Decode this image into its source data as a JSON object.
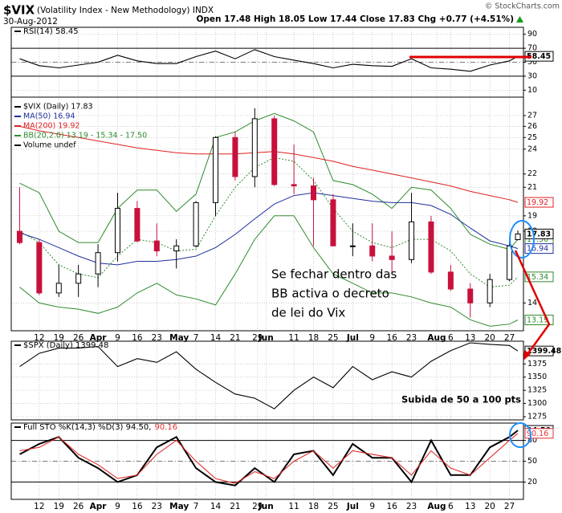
{
  "header": {
    "symbol": "$VIX",
    "name": "(Volatility Index - New Methodology) INDX",
    "date": "30-Aug-2012",
    "quote": "Open 17.48 High 18.05 Low 17.44 Close 17.83 Chg +0.77 (+4.51%)",
    "source": "© StockCharts.com"
  },
  "chart_data": [
    {
      "type": "line",
      "title": "RSI(14) 58.45",
      "x": [
        "2012-03-05",
        "2012-03-12",
        "2012-03-19",
        "2012-03-26",
        "2012-04-02",
        "2012-04-09",
        "2012-04-16",
        "2012-04-23",
        "2012-04-30",
        "2012-05-07",
        "2012-05-14",
        "2012-05-21",
        "2012-05-28",
        "2012-06-04",
        "2012-06-11",
        "2012-06-18",
        "2012-06-25",
        "2012-07-02",
        "2012-07-09",
        "2012-07-16",
        "2012-07-23",
        "2012-07-30",
        "2012-08-06",
        "2012-08-13",
        "2012-08-20",
        "2012-08-27",
        "2012-08-30"
      ],
      "xlim": [
        "2012-03-02",
        "2012-09-01"
      ],
      "ylim": [
        0,
        100
      ],
      "yticks": [
        10,
        30,
        50,
        70,
        90
      ],
      "ref_lines": [
        30,
        50,
        70
      ],
      "series": [
        {
          "color": "#000000",
          "values": [
            55,
            45,
            42,
            46,
            50,
            60,
            52,
            48,
            48,
            58,
            66,
            55,
            68,
            58,
            53,
            48,
            42,
            47,
            45,
            44,
            55,
            42,
            40,
            37,
            46,
            52,
            58.45
          ]
        }
      ]
    },
    {
      "type": "candlestick",
      "title": "$VIX (Daily) 17.83",
      "x": [
        "2012-03-05",
        "2012-03-12",
        "2012-03-19",
        "2012-03-26",
        "2012-04-02",
        "2012-04-09",
        "2012-04-16",
        "2012-04-23",
        "2012-04-30",
        "2012-05-07",
        "2012-05-14",
        "2012-05-21",
        "2012-05-28",
        "2012-06-04",
        "2012-06-11",
        "2012-06-18",
        "2012-06-25",
        "2012-07-02",
        "2012-07-09",
        "2012-07-16",
        "2012-07-23",
        "2012-07-30",
        "2012-08-06",
        "2012-08-13",
        "2012-08-20",
        "2012-08-27",
        "2012-08-30"
      ],
      "xlim": [
        "2012-03-02",
        "2012-09-01"
      ],
      "ylim": [
        12.7,
        28.8
      ],
      "log": true,
      "yticks": [
        14,
        18,
        19,
        21,
        22,
        24,
        25,
        26,
        27
      ],
      "xticks": [
        {
          "value": "2012-03-12",
          "label": "12"
        },
        {
          "value": "2012-03-19",
          "label": "19"
        },
        {
          "value": "2012-03-26",
          "label": "26"
        },
        {
          "value": "2012-04-02",
          "label": "Apr"
        },
        {
          "value": "2012-04-09",
          "label": "9"
        },
        {
          "value": "2012-04-16",
          "label": "16"
        },
        {
          "value": "2012-04-23",
          "label": "23"
        },
        {
          "value": "2012-05-01",
          "label": "May"
        },
        {
          "value": "2012-05-07",
          "label": "7"
        },
        {
          "value": "2012-05-14",
          "label": "14"
        },
        {
          "value": "2012-05-21",
          "label": "21"
        },
        {
          "value": "2012-05-29",
          "label": "29"
        },
        {
          "value": "2012-06-01",
          "label": "Jun"
        },
        {
          "value": "2012-06-11",
          "label": "11"
        },
        {
          "value": "2012-06-18",
          "label": "18"
        },
        {
          "value": "2012-06-25",
          "label": "25"
        },
        {
          "value": "2012-07-02",
          "label": "Jul"
        },
        {
          "value": "2012-07-09",
          "label": "9"
        },
        {
          "value": "2012-07-16",
          "label": "16"
        },
        {
          "value": "2012-07-23",
          "label": "23"
        },
        {
          "value": "2012-08-01",
          "label": "Aug"
        },
        {
          "value": "2012-08-06",
          "label": "6"
        },
        {
          "value": "2012-08-13",
          "label": "13"
        },
        {
          "value": "2012-08-20",
          "label": "20"
        },
        {
          "value": "2012-08-27",
          "label": "27"
        }
      ],
      "open": [
        18.0,
        17.3,
        14.5,
        15.0,
        15.5,
        16.7,
        19.5,
        17.4,
        16.8,
        17.1,
        19.9,
        25.0,
        21.8,
        26.7,
        21.2,
        21.1,
        20.1,
        17.1,
        17.1,
        16.5,
        16.3,
        18.6,
        15.6,
        14.7,
        14.0,
        15.2,
        17.48
      ],
      "high": [
        21.0,
        17.5,
        16.0,
        16.0,
        17.2,
        20.6,
        20.0,
        18.5,
        17.5,
        20.0,
        25.1,
        25.5,
        27.7,
        27.0,
        24.4,
        21.7,
        20.5,
        18.5,
        18.5,
        18.0,
        20.6,
        19.0,
        16.0,
        15.0,
        15.5,
        17.4,
        18.05
      ],
      "low": [
        17.2,
        14.4,
        14.3,
        14.3,
        14.8,
        16.2,
        17.3,
        16.5,
        15.8,
        17.0,
        19.0,
        21.5,
        21.0,
        21.1,
        20.5,
        17.1,
        17.1,
        16.5,
        16.2,
        15.5,
        16.1,
        15.5,
        14.6,
        13.3,
        13.8,
        15.1,
        17.44
      ],
      "close": [
        17.3,
        14.5,
        15.0,
        15.5,
        16.7,
        19.5,
        17.4,
        16.8,
        17.1,
        19.9,
        25.0,
        21.8,
        26.7,
        21.2,
        21.1,
        20.1,
        17.1,
        17.1,
        16.5,
        16.3,
        18.6,
        15.6,
        14.7,
        14.0,
        15.2,
        17.1,
        17.83
      ],
      "up_color": "#000000",
      "down_color": "#c8103c",
      "series": [
        {
          "name": "MA(50) 16.94",
          "color": "#1f2f9a",
          "values": [
            17.9,
            17.5,
            17.0,
            16.5,
            16.1,
            16.0,
            16.2,
            16.2,
            16.3,
            16.5,
            17.0,
            17.8,
            18.8,
            19.8,
            20.4,
            20.6,
            20.4,
            20.2,
            20.0,
            19.9,
            19.9,
            19.7,
            19.1,
            18.2,
            17.4,
            17.1,
            16.94
          ]
        },
        {
          "name": "MA(200) 19.92",
          "color": "#e02020",
          "values": [
            26.0,
            25.6,
            25.3,
            25.0,
            24.7,
            24.4,
            24.1,
            23.9,
            23.7,
            23.6,
            23.6,
            23.6,
            23.7,
            23.8,
            23.6,
            23.3,
            23.0,
            22.6,
            22.3,
            22.0,
            21.7,
            21.4,
            21.1,
            20.7,
            20.4,
            20.1,
            19.92
          ]
        }
      ],
      "bands": {
        "name": "BB(20,2.0) 13.19 - 15.34 - 17.50",
        "color": "#2e8b2e",
        "upper": [
          21.3,
          20.6,
          18.0,
          17.3,
          17.3,
          19.5,
          20.8,
          20.8,
          19.3,
          20.5,
          25.0,
          25.5,
          26.5,
          27.2,
          26.5,
          25.5,
          21.5,
          21.2,
          20.5,
          19.5,
          21.0,
          20.8,
          19.5,
          17.8,
          17.2,
          16.9,
          17.5
        ],
        "upper_value_labels": [
          null,
          null,
          null,
          null,
          null,
          null,
          null,
          null,
          null,
          null,
          null,
          null,
          null,
          null,
          null,
          null,
          null,
          null,
          null,
          null,
          null,
          null,
          null,
          null,
          null,
          null,
          "17.50"
        ],
        "middle": [
          18.0,
          17.3,
          16.0,
          15.5,
          15.3,
          16.5,
          17.5,
          17.3,
          16.8,
          16.9,
          19.0,
          21.0,
          22.5,
          23.3,
          23.0,
          21.5,
          19.5,
          18.0,
          17.3,
          17.0,
          17.5,
          17.5,
          16.8,
          15.5,
          14.8,
          14.9,
          15.34
        ],
        "lower": [
          14.8,
          14.0,
          13.8,
          13.7,
          13.5,
          13.8,
          14.5,
          15.0,
          14.4,
          14.2,
          13.9,
          15.5,
          17.5,
          19.0,
          19.0,
          17.0,
          15.5,
          15.0,
          14.5,
          14.5,
          14.3,
          14.0,
          13.8,
          13.2,
          12.9,
          13.0,
          13.19
        ]
      },
      "volume_legend": "Volume undef",
      "annotations": [
        "Se fechar dentro das",
        "BB activa o decreto",
        "de lei do Vix"
      ]
    },
    {
      "type": "line",
      "title": "$SPX (Daily) 1399.48",
      "x": [
        "2012-03-05",
        "2012-03-12",
        "2012-03-19",
        "2012-03-26",
        "2012-04-02",
        "2012-04-09",
        "2012-04-16",
        "2012-04-23",
        "2012-04-30",
        "2012-05-07",
        "2012-05-14",
        "2012-05-21",
        "2012-05-28",
        "2012-06-04",
        "2012-06-11",
        "2012-06-18",
        "2012-06-25",
        "2012-07-02",
        "2012-07-09",
        "2012-07-16",
        "2012-07-23",
        "2012-07-30",
        "2012-08-06",
        "2012-08-13",
        "2012-08-20",
        "2012-08-27",
        "2012-08-30"
      ],
      "xlim": [
        "2012-03-02",
        "2012-09-01"
      ],
      "ylim": [
        1269,
        1418
      ],
      "yticks": [
        1275,
        1300,
        1325,
        1350,
        1375
      ],
      "series": [
        {
          "color": "#000000",
          "values": [
            1370,
            1395,
            1405,
            1405,
            1408,
            1370,
            1385,
            1378,
            1398,
            1365,
            1340,
            1318,
            1310,
            1290,
            1325,
            1350,
            1330,
            1370,
            1345,
            1360,
            1350,
            1380,
            1400,
            1415,
            1412,
            1410,
            1399.48
          ]
        }
      ],
      "annotations": [
        "Subida de 50 a 100 pts"
      ]
    },
    {
      "type": "line",
      "title": "Full STO %K(14,3) %D(3) 94.50,",
      "x": [
        "2012-03-05",
        "2012-03-12",
        "2012-03-19",
        "2012-03-26",
        "2012-04-02",
        "2012-04-09",
        "2012-04-16",
        "2012-04-23",
        "2012-04-30",
        "2012-05-07",
        "2012-05-14",
        "2012-05-21",
        "2012-05-28",
        "2012-06-04",
        "2012-06-11",
        "2012-06-18",
        "2012-06-25",
        "2012-07-02",
        "2012-07-09",
        "2012-07-16",
        "2012-07-23",
        "2012-07-30",
        "2012-08-06",
        "2012-08-13",
        "2012-08-20",
        "2012-08-27",
        "2012-08-30"
      ],
      "xlim": [
        "2012-03-02",
        "2012-09-01"
      ],
      "ylim": [
        -5,
        105
      ],
      "yticks": [
        20,
        50,
        80
      ],
      "ref_lines": [
        20,
        50,
        80
      ],
      "xticks": [
        {
          "value": "2012-03-12",
          "label": "12"
        },
        {
          "value": "2012-03-19",
          "label": "19"
        },
        {
          "value": "2012-03-26",
          "label": "26"
        },
        {
          "value": "2012-04-02",
          "label": "Apr"
        },
        {
          "value": "2012-04-09",
          "label": "9"
        },
        {
          "value": "2012-04-16",
          "label": "16"
        },
        {
          "value": "2012-04-23",
          "label": "23"
        },
        {
          "value": "2012-05-01",
          "label": "May"
        },
        {
          "value": "2012-05-07",
          "label": "7"
        },
        {
          "value": "2012-05-14",
          "label": "14"
        },
        {
          "value": "2012-05-21",
          "label": "21"
        },
        {
          "value": "2012-05-29",
          "label": "29"
        },
        {
          "value": "2012-06-01",
          "label": "Jun"
        },
        {
          "value": "2012-06-11",
          "label": "11"
        },
        {
          "value": "2012-06-18",
          "label": "18"
        },
        {
          "value": "2012-06-25",
          "label": "25"
        },
        {
          "value": "2012-07-02",
          "label": "Jul"
        },
        {
          "value": "2012-07-09",
          "label": "9"
        },
        {
          "value": "2012-07-16",
          "label": "16"
        },
        {
          "value": "2012-07-23",
          "label": "23"
        },
        {
          "value": "2012-08-01",
          "label": "Aug"
        },
        {
          "value": "2012-08-06",
          "label": "6"
        },
        {
          "value": "2012-08-13",
          "label": "13"
        },
        {
          "value": "2012-08-20",
          "label": "20"
        },
        {
          "value": "2012-08-27",
          "label": "27"
        }
      ],
      "series": [
        {
          "color": "#000000",
          "values": [
            60,
            75,
            85,
            55,
            40,
            20,
            30,
            70,
            85,
            40,
            20,
            15,
            40,
            20,
            60,
            65,
            30,
            75,
            55,
            55,
            20,
            80,
            30,
            30,
            70,
            85,
            94.5
          ],
          "value_labels": [
            null,
            null,
            null,
            null,
            null,
            null,
            null,
            null,
            null,
            null,
            null,
            null,
            null,
            null,
            null,
            null,
            null,
            null,
            null,
            null,
            null,
            null,
            null,
            null,
            null,
            null,
            "94.50"
          ]
        },
        {
          "color": "#e03030",
          "values": [
            65,
            70,
            85,
            60,
            45,
            25,
            30,
            60,
            80,
            50,
            25,
            18,
            35,
            25,
            50,
            65,
            40,
            65,
            60,
            55,
            30,
            65,
            40,
            30,
            55,
            80,
            90.16
          ]
        }
      ]
    }
  ]
}
